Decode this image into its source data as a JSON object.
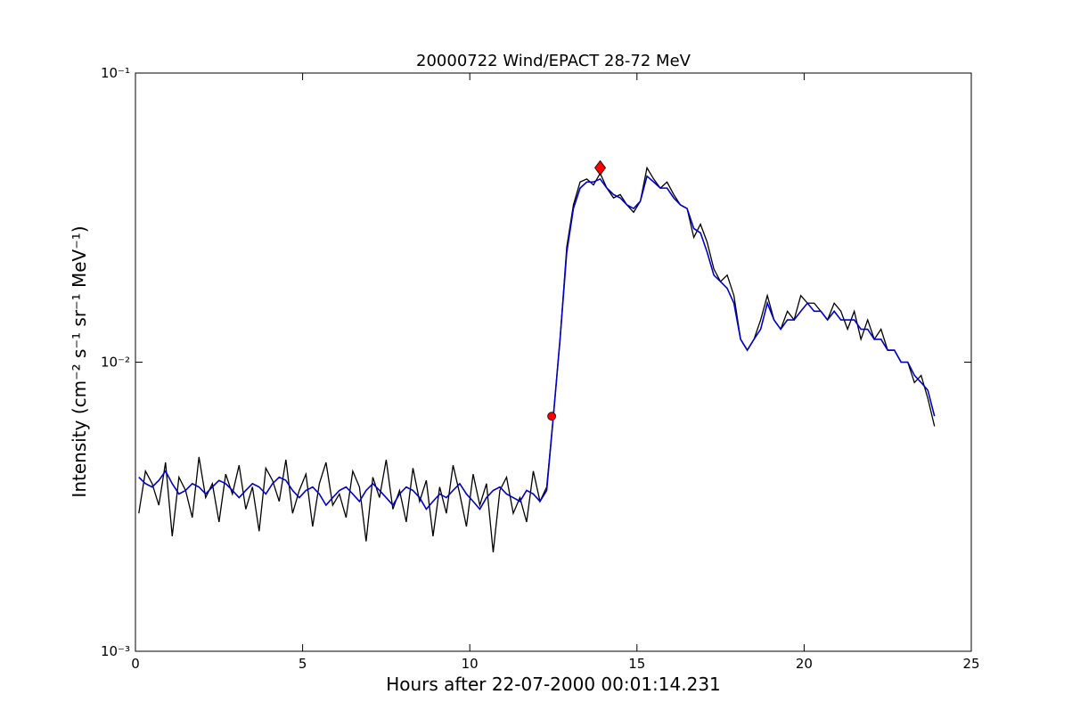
{
  "chart_data": {
    "type": "line",
    "title": "20000722 Wind/EPACT 28-72 MeV",
    "xlabel": "Hours after 22-07-2000 00:01:14.231",
    "ylabel": "Intensity (cm⁻² s⁻¹ sr⁻¹ MeV⁻¹)",
    "yscale": "log",
    "xlim": [
      0,
      25
    ],
    "ylim": [
      0.001,
      0.1
    ],
    "xticks": [
      0,
      5,
      10,
      15,
      20,
      25
    ],
    "yticks": [
      {
        "value": 0.001,
        "label": "10⁻³"
      },
      {
        "value": 0.01,
        "label": "10⁻²"
      },
      {
        "value": 0.1,
        "label": "10⁻¹"
      }
    ],
    "x": [
      0.1,
      0.3,
      0.5,
      0.7,
      0.9,
      1.1,
      1.3,
      1.5,
      1.7,
      1.9,
      2.1,
      2.3,
      2.5,
      2.7,
      2.9,
      3.1,
      3.3,
      3.5,
      3.7,
      3.9,
      4.1,
      4.3,
      4.5,
      4.7,
      4.9,
      5.1,
      5.3,
      5.5,
      5.7,
      5.9,
      6.1,
      6.3,
      6.5,
      6.7,
      6.9,
      7.1,
      7.3,
      7.5,
      7.7,
      7.9,
      8.1,
      8.3,
      8.5,
      8.7,
      8.9,
      9.1,
      9.3,
      9.5,
      9.7,
      9.9,
      10.1,
      10.3,
      10.5,
      10.7,
      10.9,
      11.1,
      11.3,
      11.5,
      11.7,
      11.9,
      12.1,
      12.3,
      12.5,
      12.7,
      12.9,
      13.1,
      13.3,
      13.5,
      13.7,
      13.9,
      14.1,
      14.3,
      14.5,
      14.7,
      14.9,
      15.1,
      15.3,
      15.5,
      15.7,
      15.9,
      16.1,
      16.3,
      16.5,
      16.7,
      16.9,
      17.1,
      17.3,
      17.5,
      17.7,
      17.9,
      18.1,
      18.3,
      18.5,
      18.7,
      18.9,
      19.1,
      19.3,
      19.5,
      19.7,
      19.9,
      20.1,
      20.3,
      20.5,
      20.7,
      20.9,
      21.1,
      21.3,
      21.5,
      21.7,
      21.9,
      22.1,
      22.3,
      22.5,
      22.7,
      22.9,
      23.1,
      23.3,
      23.5,
      23.7,
      23.9
    ],
    "series": [
      {
        "color": "#000000",
        "values": [
          0.003,
          0.0042,
          0.0038,
          0.0032,
          0.0045,
          0.0025,
          0.004,
          0.0036,
          0.0029,
          0.0047,
          0.0034,
          0.0038,
          0.0028,
          0.0041,
          0.0035,
          0.0044,
          0.0031,
          0.0037,
          0.0026,
          0.0043,
          0.0039,
          0.0033,
          0.0046,
          0.003,
          0.0036,
          0.0041,
          0.0027,
          0.0038,
          0.0045,
          0.0032,
          0.0035,
          0.0029,
          0.0042,
          0.0037,
          0.0024,
          0.004,
          0.0034,
          0.0046,
          0.0031,
          0.0036,
          0.0028,
          0.0043,
          0.0033,
          0.0039,
          0.0025,
          0.0037,
          0.003,
          0.0044,
          0.0035,
          0.0027,
          0.0041,
          0.0032,
          0.0038,
          0.0022,
          0.0036,
          0.004,
          0.003,
          0.0034,
          0.0028,
          0.0042,
          0.0033,
          0.0037,
          0.0065,
          0.012,
          0.025,
          0.035,
          0.042,
          0.043,
          0.041,
          0.045,
          0.04,
          0.037,
          0.038,
          0.035,
          0.033,
          0.036,
          0.047,
          0.043,
          0.04,
          0.042,
          0.038,
          0.035,
          0.034,
          0.027,
          0.03,
          0.026,
          0.021,
          0.019,
          0.02,
          0.017,
          0.012,
          0.011,
          0.012,
          0.014,
          0.017,
          0.014,
          0.013,
          0.015,
          0.014,
          0.017,
          0.016,
          0.016,
          0.015,
          0.014,
          0.016,
          0.015,
          0.013,
          0.015,
          0.012,
          0.014,
          0.012,
          0.013,
          0.011,
          0.011,
          0.01,
          0.01,
          0.0085,
          0.009,
          0.0075,
          0.006
        ]
      },
      {
        "color": "#0000cc",
        "values": [
          0.004,
          0.0038,
          0.0037,
          0.0039,
          0.0042,
          0.0038,
          0.0035,
          0.0036,
          0.0038,
          0.0037,
          0.0035,
          0.0037,
          0.0039,
          0.0038,
          0.0036,
          0.0034,
          0.0036,
          0.0038,
          0.0037,
          0.0035,
          0.0038,
          0.004,
          0.0039,
          0.0036,
          0.0034,
          0.0036,
          0.0037,
          0.0035,
          0.0032,
          0.0034,
          0.0036,
          0.0037,
          0.0035,
          0.0033,
          0.0036,
          0.0038,
          0.0036,
          0.0034,
          0.0032,
          0.0035,
          0.0037,
          0.0036,
          0.0034,
          0.0031,
          0.0033,
          0.0035,
          0.0034,
          0.0036,
          0.0038,
          0.0035,
          0.0033,
          0.0031,
          0.0034,
          0.0036,
          0.0037,
          0.0035,
          0.0034,
          0.0033,
          0.0036,
          0.0035,
          0.0033,
          0.0036,
          0.0065,
          0.012,
          0.024,
          0.034,
          0.04,
          0.042,
          0.042,
          0.043,
          0.04,
          0.038,
          0.037,
          0.035,
          0.034,
          0.036,
          0.044,
          0.042,
          0.04,
          0.04,
          0.037,
          0.035,
          0.034,
          0.029,
          0.028,
          0.024,
          0.02,
          0.019,
          0.018,
          0.016,
          0.012,
          0.011,
          0.012,
          0.013,
          0.016,
          0.014,
          0.013,
          0.014,
          0.014,
          0.015,
          0.016,
          0.015,
          0.015,
          0.014,
          0.015,
          0.014,
          0.014,
          0.014,
          0.013,
          0.013,
          0.012,
          0.012,
          0.011,
          0.011,
          0.01,
          0.01,
          0.009,
          0.0085,
          0.008,
          0.0065
        ]
      }
    ],
    "markers": [
      {
        "x": 12.45,
        "y": 0.0065,
        "shape": "circle",
        "color": "#ff0000"
      },
      {
        "x": 13.9,
        "y": 0.047,
        "shape": "diamond",
        "color": "#ff0000"
      }
    ]
  }
}
